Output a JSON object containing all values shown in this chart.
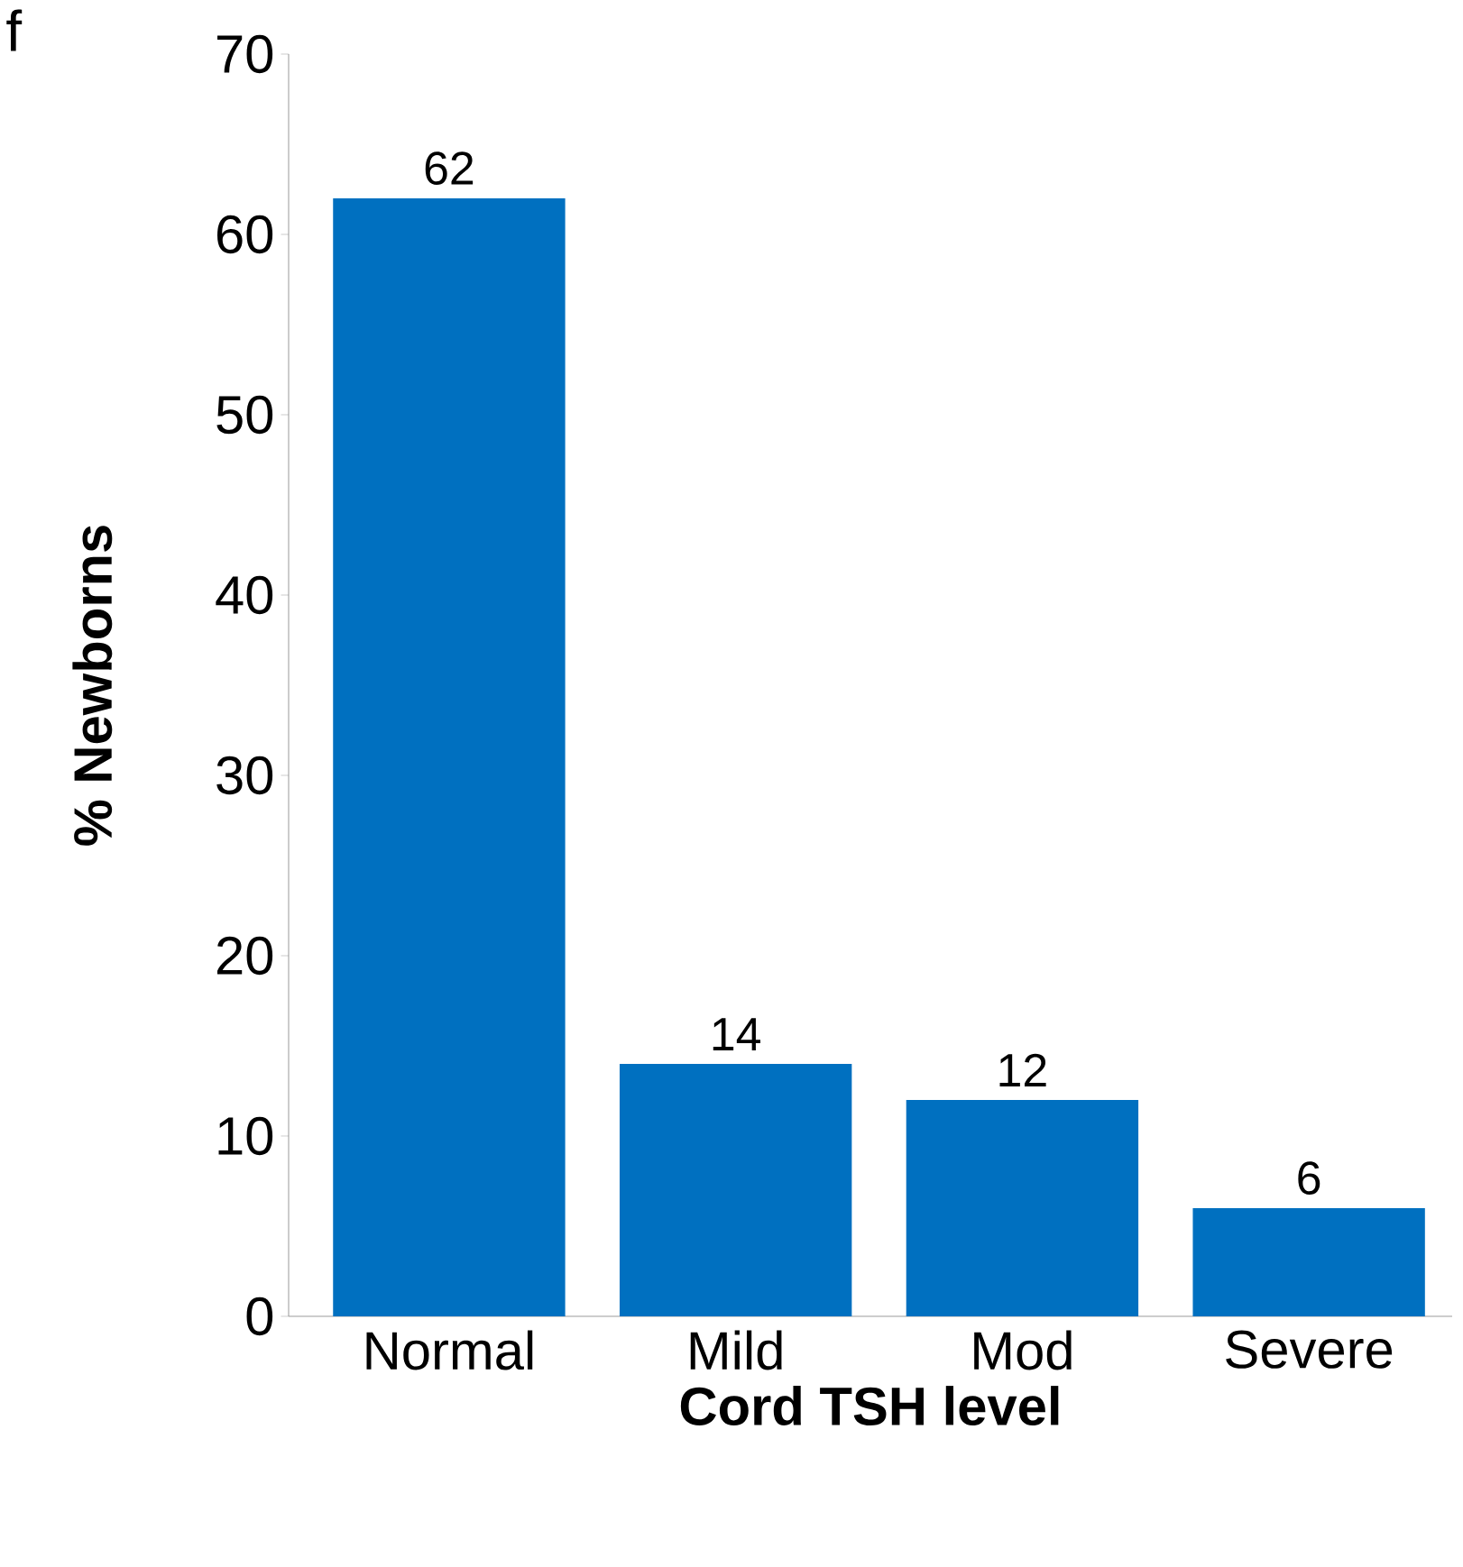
{
  "chart_data": {
    "type": "bar",
    "xlabel": "Cord TSH level",
    "ylabel": "% Newborns",
    "categories": [
      "Normal",
      "Mild",
      "Mod",
      "Severe"
    ],
    "values": [
      62,
      14,
      12,
      6
    ],
    "color": "#0070c0",
    "ylim": [
      0,
      70
    ],
    "yticks": [
      0,
      10,
      20,
      30,
      40,
      50,
      60,
      70
    ],
    "data_labels": true,
    "annotations": [
      "f"
    ]
  }
}
